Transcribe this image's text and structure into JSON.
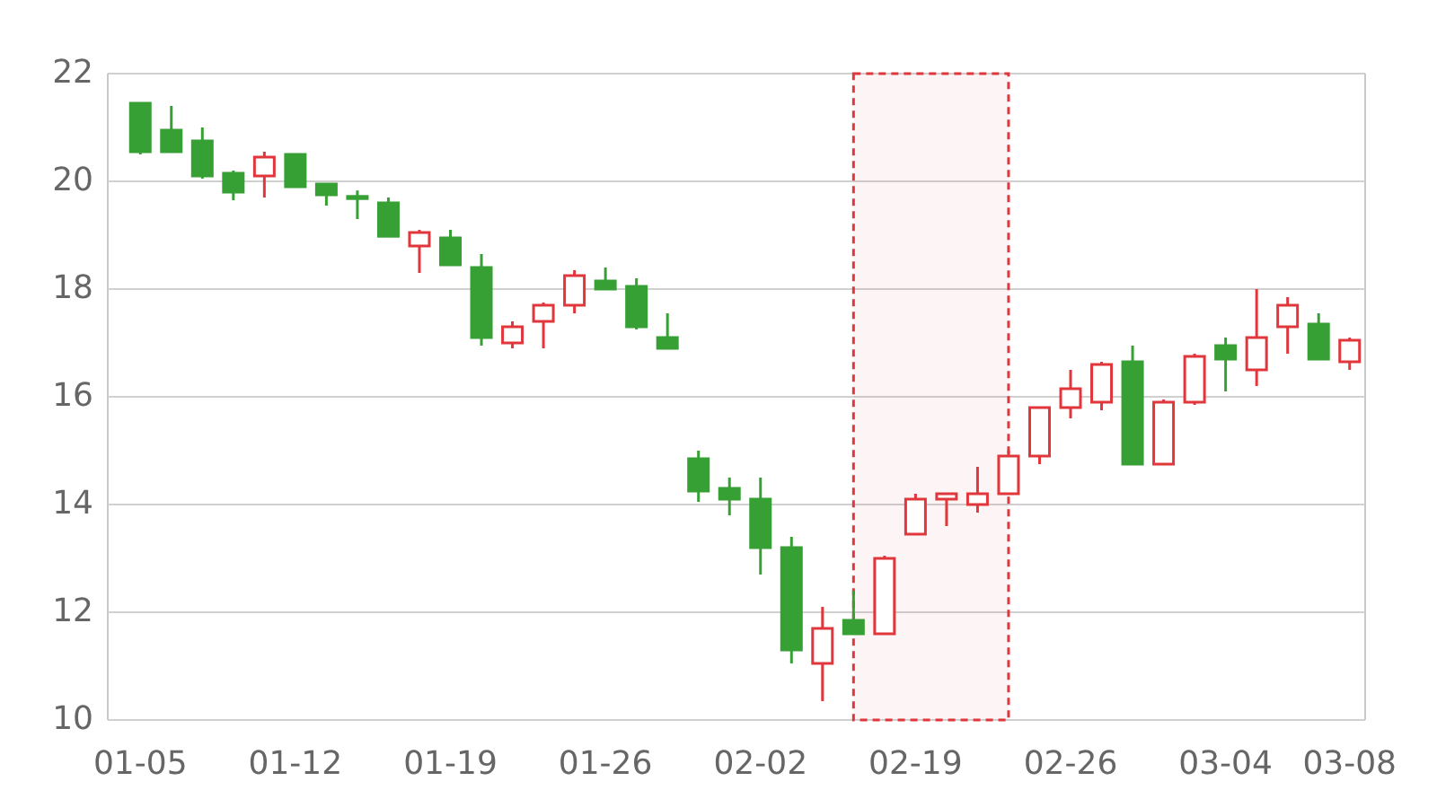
{
  "chart_data": {
    "type": "candlestick",
    "categories": [
      "01-05",
      null,
      null,
      null,
      null,
      "01-12",
      null,
      null,
      null,
      null,
      "01-19",
      null,
      null,
      null,
      null,
      "01-26",
      null,
      null,
      null,
      null,
      "02-02",
      null,
      null,
      null,
      null,
      "02-19",
      null,
      null,
      null,
      null,
      "02-26",
      null,
      null,
      null,
      null,
      "03-04",
      null,
      null,
      null,
      "03-08"
    ],
    "ohlc": [
      [
        21.45,
        21.45,
        20.5,
        20.55
      ],
      [
        20.95,
        21.4,
        20.55,
        20.55
      ],
      [
        20.75,
        21.0,
        20.05,
        20.1
      ],
      [
        20.15,
        20.2,
        19.65,
        19.8
      ],
      [
        20.1,
        20.55,
        19.7,
        20.45
      ],
      [
        20.5,
        20.5,
        19.9,
        19.9
      ],
      [
        19.95,
        19.95,
        19.55,
        19.75
      ],
      [
        19.72,
        19.83,
        19.3,
        19.68
      ],
      [
        19.6,
        19.7,
        18.98,
        18.98
      ],
      [
        18.8,
        19.1,
        18.3,
        19.05
      ],
      [
        18.95,
        19.1,
        18.45,
        18.45
      ],
      [
        18.4,
        18.65,
        16.95,
        17.1
      ],
      [
        17.0,
        17.4,
        16.9,
        17.3
      ],
      [
        17.4,
        17.75,
        16.9,
        17.7
      ],
      [
        17.7,
        18.35,
        17.55,
        18.25
      ],
      [
        18.15,
        18.4,
        18.0,
        18.0
      ],
      [
        18.05,
        18.2,
        17.25,
        17.3
      ],
      [
        17.1,
        17.55,
        16.9,
        16.9
      ],
      [
        14.85,
        15.0,
        14.05,
        14.25
      ],
      [
        14.3,
        14.5,
        13.8,
        14.1
      ],
      [
        14.1,
        14.5,
        12.7,
        13.2
      ],
      [
        13.2,
        13.4,
        11.05,
        11.3
      ],
      [
        11.05,
        12.1,
        10.35,
        11.7
      ],
      [
        11.85,
        12.4,
        11.6,
        11.6
      ],
      [
        11.6,
        13.05,
        11.6,
        13.0
      ],
      [
        13.45,
        14.2,
        13.45,
        14.1
      ],
      [
        14.1,
        14.2,
        13.6,
        14.2
      ],
      [
        14.0,
        14.7,
        13.85,
        14.2
      ],
      [
        14.2,
        15.0,
        14.2,
        14.9
      ],
      [
        14.9,
        15.8,
        14.75,
        15.8
      ],
      [
        15.8,
        16.5,
        15.6,
        16.15
      ],
      [
        15.9,
        16.65,
        15.75,
        16.6
      ],
      [
        16.65,
        16.95,
        14.75,
        14.75
      ],
      [
        14.75,
        15.95,
        14.75,
        15.9
      ],
      [
        15.9,
        16.8,
        15.85,
        16.75
      ],
      [
        16.95,
        17.1,
        16.1,
        16.7
      ],
      [
        16.5,
        18.0,
        16.2,
        17.1
      ],
      [
        17.3,
        17.85,
        16.8,
        17.7
      ],
      [
        17.35,
        17.55,
        16.7,
        16.7
      ],
      [
        16.65,
        17.1,
        16.5,
        17.05
      ]
    ],
    "colors": [
      "#37a035",
      "#37a035",
      "#37a035",
      "#37a035",
      "#e0363c",
      "#37a035",
      "#37a035",
      "#37a035",
      "#37a035",
      "#e0363c",
      "#37a035",
      "#37a035",
      "#e0363c",
      "#e0363c",
      "#e0363c",
      "#37a035",
      "#37a035",
      "#37a035",
      "#37a035",
      "#37a035",
      "#37a035",
      "#37a035",
      "#e0363c",
      "#37a035",
      "#e0363c",
      "#e0363c",
      "#e0363c",
      "#e0363c",
      "#e0363c",
      "#e0363c",
      "#e0363c",
      "#e0363c",
      "#37a035",
      "#e0363c",
      "#e0363c",
      "#37a035",
      "#e0363c",
      "#e0363c",
      "#37a035",
      "#e0363c"
    ],
    "ylim": [
      10,
      22
    ],
    "yticks": [
      10,
      12,
      14,
      16,
      18,
      20,
      22
    ],
    "grid": "y"
  }
}
